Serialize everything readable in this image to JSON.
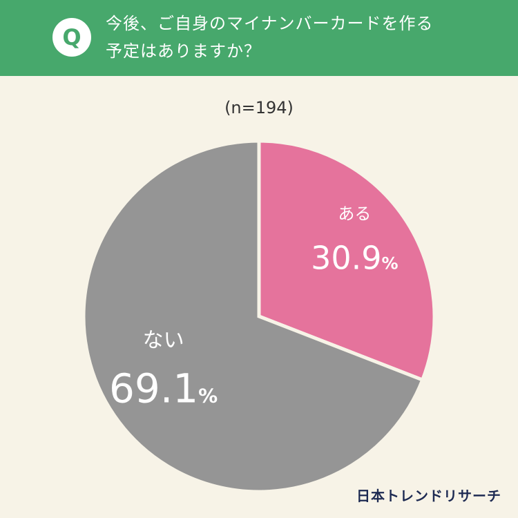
{
  "header": {
    "badge": "Q",
    "question_line1": "今後、ご自身のマイナンバーカードを作る",
    "question_line2": "予定はありますか？"
  },
  "sample_size": "(n=194)",
  "brand": "日本トレンドリサーチ",
  "colors": {
    "header_bg": "#47a86c",
    "background": "#f7f3e7",
    "yes": "#e5739c",
    "no": "#959595"
  },
  "chart_data": {
    "type": "pie",
    "title": "今後、ご自身のマイナンバーカードを作る予定はありますか？",
    "unit": "%",
    "slices": [
      {
        "label": "ある",
        "value": 30.9,
        "display": "30.9"
      },
      {
        "label": "ない",
        "value": 69.1,
        "display": "69.1"
      }
    ]
  }
}
